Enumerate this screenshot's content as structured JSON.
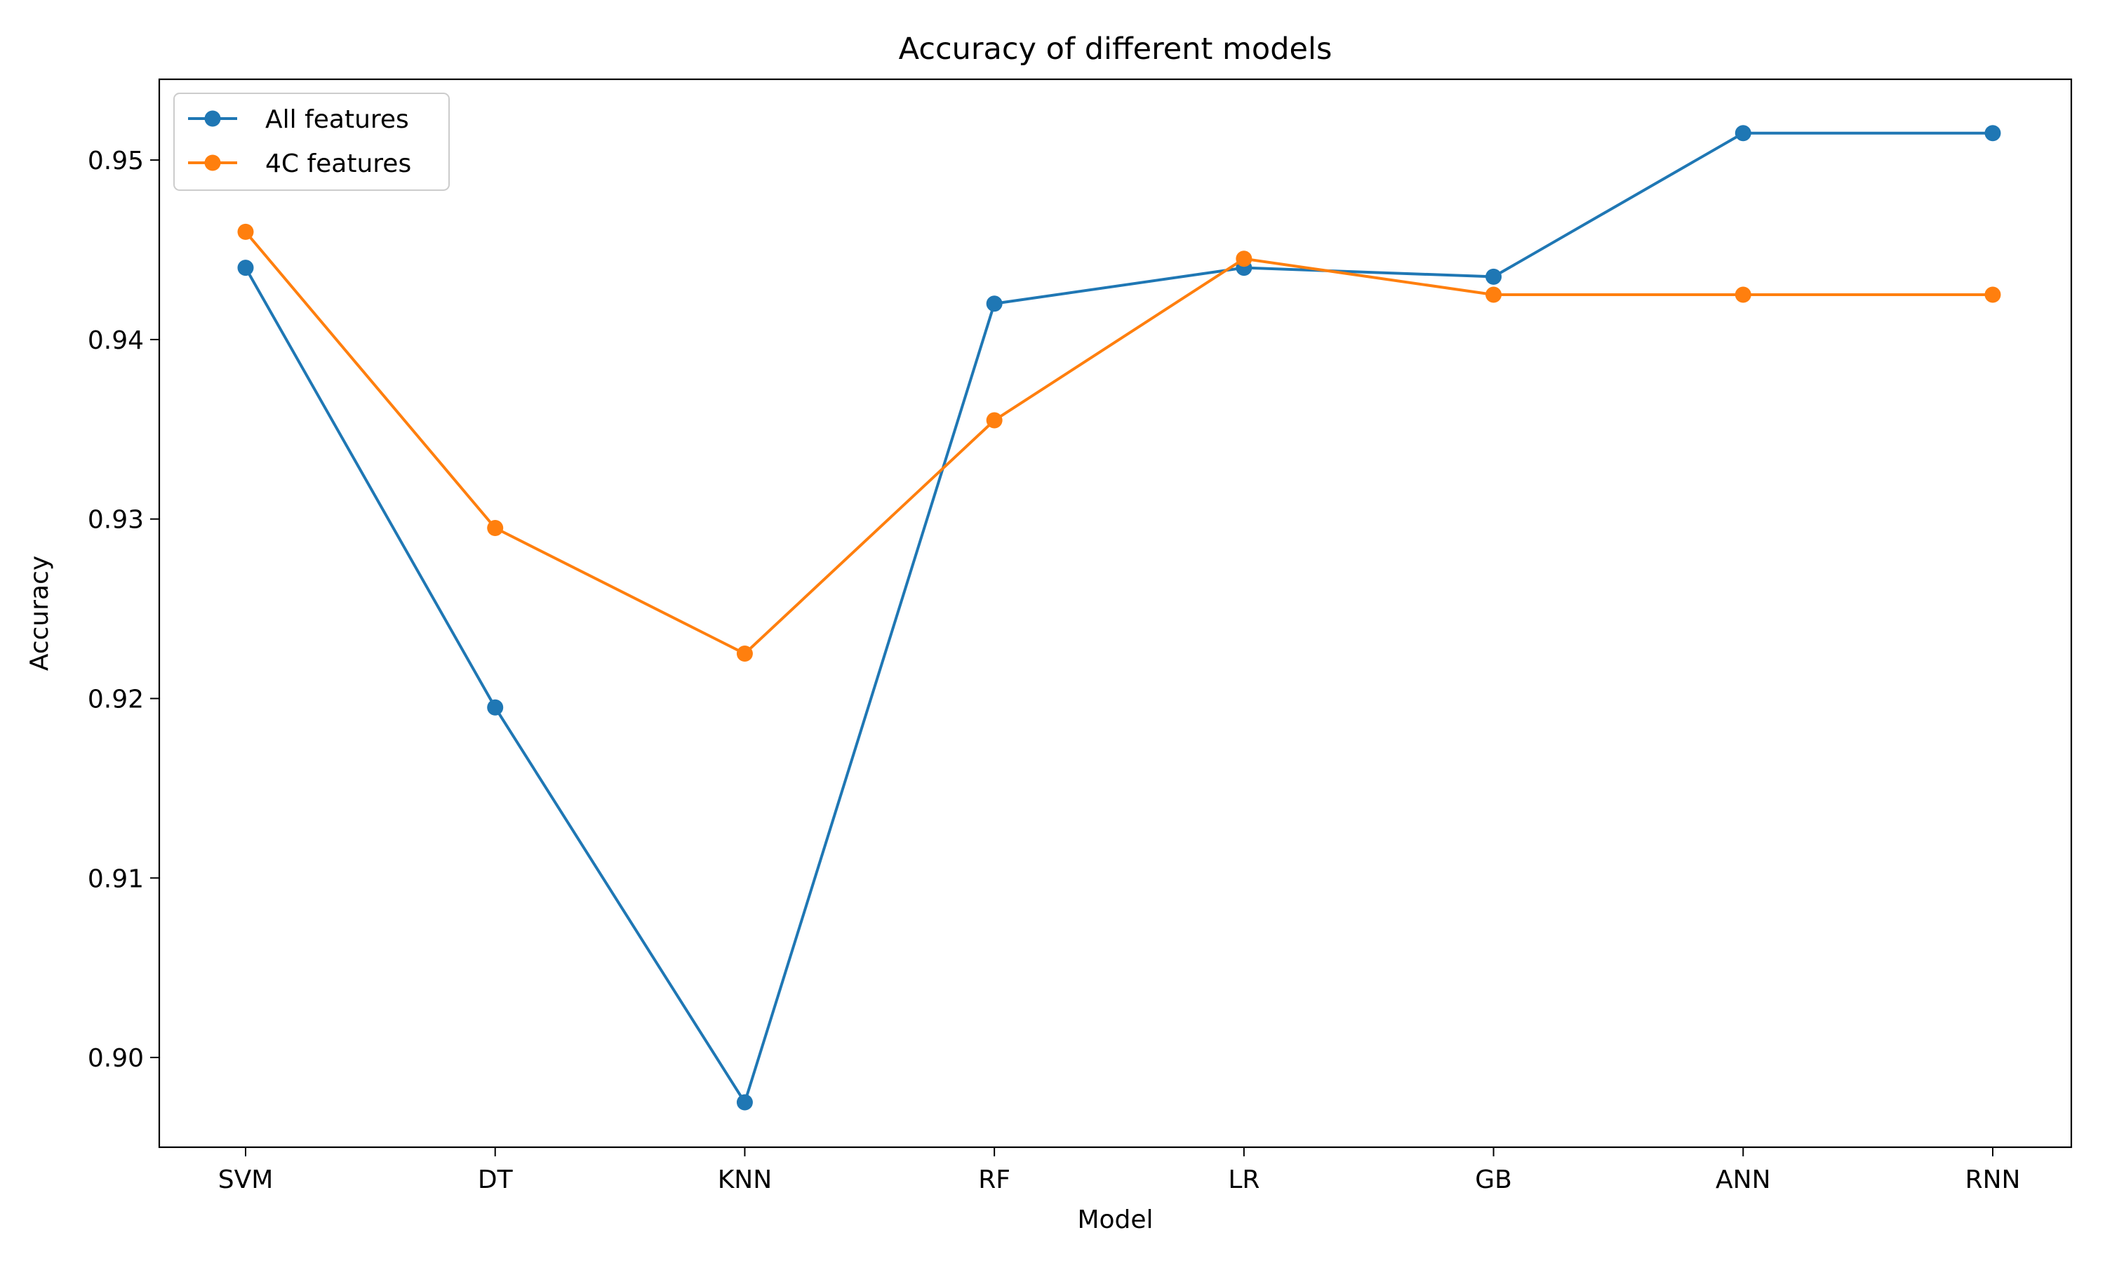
{
  "chart_data": {
    "type": "line",
    "title": "Accuracy of different models",
    "xlabel": "Model",
    "ylabel": "Accuracy",
    "categories": [
      "SVM",
      "DT",
      "KNN",
      "RF",
      "LR",
      "GB",
      "ANN",
      "RNN"
    ],
    "ylim": [
      0.895,
      0.9545
    ],
    "yticks": [
      "0.90",
      "0.91",
      "0.92",
      "0.93",
      "0.94",
      "0.95"
    ],
    "grid": false,
    "legend_position": "top-left",
    "series": [
      {
        "name": "All features",
        "color": "#1f77b4",
        "marker": "circle",
        "values": [
          0.944,
          0.9195,
          0.8975,
          0.942,
          0.944,
          0.9435,
          0.9515,
          0.9515
        ]
      },
      {
        "name": "4C features",
        "color": "#ff7f0e",
        "marker": "circle",
        "values": [
          0.946,
          0.9295,
          0.9225,
          0.9355,
          0.9445,
          0.9425,
          0.9425,
          0.9425
        ]
      }
    ]
  }
}
